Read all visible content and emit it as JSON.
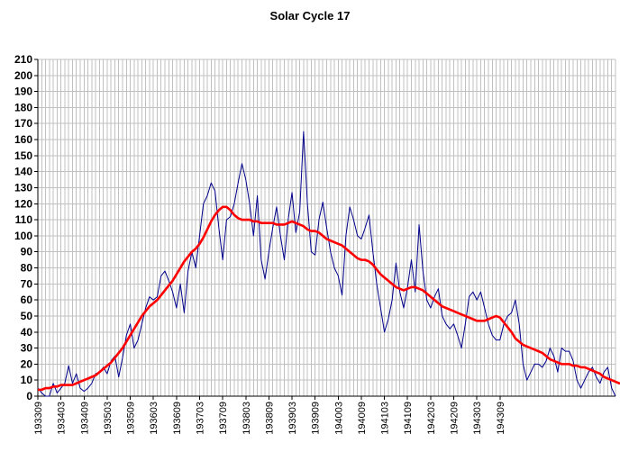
{
  "chart_data": {
    "type": "line",
    "title": "Solar Cycle 17",
    "xlabel": "",
    "ylabel": "",
    "ylim": [
      0,
      210
    ],
    "yticks": [
      0,
      10,
      20,
      30,
      40,
      50,
      60,
      70,
      80,
      90,
      100,
      110,
      120,
      130,
      140,
      150,
      160,
      170,
      180,
      190,
      200,
      210
    ],
    "x_tick_labels": [
      "193309",
      "193403",
      "193409",
      "193503",
      "193509",
      "193603",
      "193609",
      "193703",
      "193709",
      "193803",
      "193809",
      "193903",
      "193909",
      "194003",
      "194009",
      "194103",
      "194109",
      "194203",
      "194209",
      "194303",
      "194309"
    ],
    "grid": true,
    "legend": "none",
    "colors": {
      "monthly": "#00008b",
      "smoothed": "#ff0000",
      "grid": "#c0c0c0"
    },
    "series": [
      {
        "role": "monthly",
        "values": [
          5,
          2,
          0,
          0,
          8,
          2,
          5,
          8,
          19,
          8,
          14,
          5,
          3,
          5,
          8,
          14,
          15,
          18,
          14,
          22,
          25,
          12,
          24,
          38,
          45,
          30,
          35,
          45,
          55,
          62,
          60,
          62,
          75,
          78,
          72,
          65,
          55,
          70,
          52,
          78,
          90,
          80,
          100,
          120,
          125,
          133,
          128,
          105,
          85,
          110,
          112,
          120,
          133,
          145,
          135,
          120,
          100,
          125,
          85,
          73,
          90,
          105,
          118,
          100,
          85,
          110,
          127,
          102,
          115,
          165,
          120,
          90,
          88,
          110,
          121,
          105,
          90,
          80,
          75,
          63,
          100,
          118,
          110,
          100,
          98,
          105,
          113,
          90,
          70,
          55,
          40,
          48,
          60,
          83,
          65,
          55,
          68,
          85,
          65,
          107,
          78,
          60,
          55,
          62,
          67,
          50,
          45,
          42,
          45,
          38,
          30,
          45,
          62,
          65,
          60,
          65,
          55,
          45,
          38,
          35,
          35,
          45,
          50,
          52,
          60,
          45,
          20,
          10,
          15,
          20,
          20,
          18,
          22,
          30,
          25,
          15,
          30,
          28,
          28,
          22,
          10,
          5,
          10,
          15,
          18,
          12,
          8,
          15,
          18,
          5,
          0
        ]
      },
      {
        "role": "smoothed",
        "values": [
          4,
          4,
          5,
          5,
          6,
          6,
          7,
          7,
          7,
          7,
          8,
          9,
          10,
          11,
          12,
          13,
          15,
          17,
          19,
          21,
          24,
          27,
          30,
          34,
          38,
          42,
          46,
          50,
          53,
          56,
          58,
          60,
          63,
          66,
          69,
          72,
          76,
          80,
          84,
          87,
          90,
          92,
          95,
          99,
          104,
          109,
          113,
          116,
          118,
          118,
          116,
          113,
          111,
          110,
          110,
          110,
          109,
          109,
          108,
          108,
          108,
          108,
          107,
          107,
          107,
          108,
          109,
          108,
          107,
          106,
          104,
          103,
          103,
          102,
          100,
          98,
          97,
          96,
          95,
          94,
          92,
          90,
          88,
          86,
          85,
          85,
          84,
          82,
          79,
          76,
          74,
          72,
          70,
          68,
          67,
          66,
          67,
          68,
          68,
          67,
          66,
          64,
          62,
          60,
          58,
          56,
          55,
          54,
          53,
          52,
          51,
          50,
          49,
          48,
          47,
          47,
          47,
          48,
          49,
          50,
          49,
          46,
          43,
          40,
          36,
          34,
          32,
          31,
          30,
          29,
          28,
          27,
          25,
          23,
          22,
          21,
          20,
          20,
          20,
          19,
          19,
          18,
          18,
          17,
          16,
          15,
          14,
          12,
          11,
          10,
          9,
          8,
          8
        ]
      }
    ]
  }
}
